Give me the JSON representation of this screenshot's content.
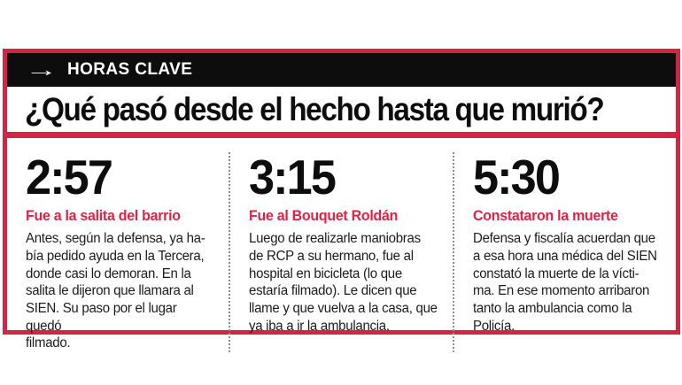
{
  "colors": {
    "accent_red": "#d52345",
    "kicker_bar_black": "#0d0d0d",
    "subtitle_red": "#e02244",
    "body_text": "#1c1c1c",
    "divider_dotted_gray": "#8c8c8c"
  },
  "icons": {
    "arrow_right": "→"
  },
  "header": {
    "kicker": "HORAS CLAVE",
    "title": "¿Qué pasó desde el hecho hasta que murió?"
  },
  "timeline": {
    "items": [
      {
        "time": "2:57",
        "subtitle": "Fue a la salita del barrio",
        "body": "Antes, según la defensa, ya ha-\nbía pedido ayuda en la Tercera,\ndonde casi lo demoran. En la\nsalita le dijeron que llamara al\nSIEN. Su paso por el lugar quedó\nfilmado."
      },
      {
        "time": "3:15",
        "subtitle": "Fue al Bouquet Roldán",
        "body": "Luego de realizarle maniobras\nde RCP a su hermano, fue al\nhospital en bicicleta (lo que\nestaría filmado). Le dicen que\nllame y que vuelva a la casa, que\nya iba a ir la ambulancia."
      },
      {
        "time": "5:30",
        "subtitle": "Constataron la muerte",
        "body": "Defensa y fiscalía acuerdan que\na esa hora una médica del SIEN\nconstató la muerte de la vícti-\nma. En ese momento arribaron\ntanto la ambulancia como la\nPolicía."
      }
    ]
  }
}
